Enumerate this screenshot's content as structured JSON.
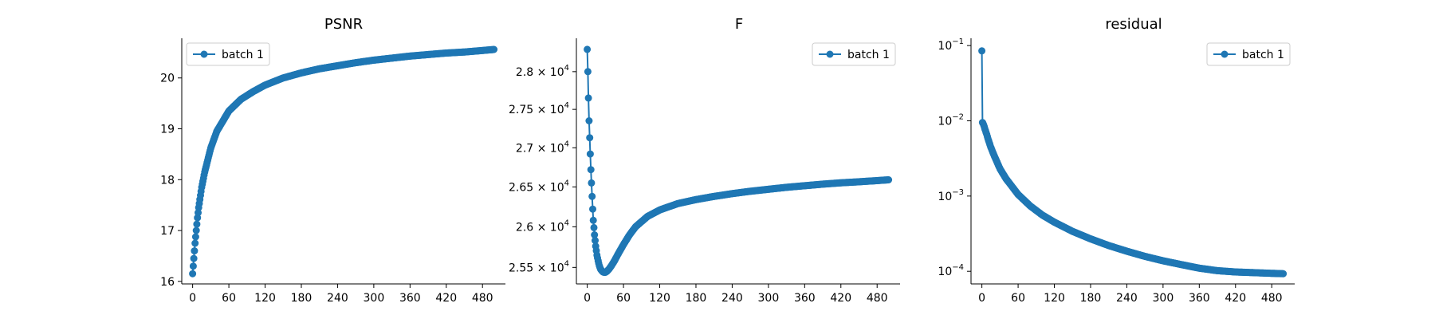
{
  "chart_data": [
    {
      "type": "line",
      "title": "PSNR",
      "xlabel": "",
      "ylabel": "",
      "yscale": "linear",
      "xlim": [
        -18,
        518
      ],
      "ylim": [
        15.95,
        20.78
      ],
      "xticks": [
        0,
        60,
        120,
        180,
        240,
        300,
        360,
        420,
        480
      ],
      "yticks": [
        16,
        17,
        18,
        19,
        20
      ],
      "ytick_labels": [
        "16",
        "17",
        "18",
        "19",
        "20"
      ],
      "legend": {
        "position": "top-left",
        "entries": [
          "batch 1"
        ]
      },
      "marker": "circle",
      "color": "#1f77b4",
      "grid": false,
      "series": [
        {
          "name": "batch 1",
          "x": [
            0,
            1,
            2,
            3,
            4,
            6,
            8,
            10,
            15,
            20,
            30,
            40,
            60,
            80,
            100,
            120,
            150,
            180,
            210,
            240,
            270,
            300,
            330,
            360,
            390,
            420,
            450,
            480,
            499
          ],
          "y": [
            16.15,
            16.3,
            16.45,
            16.6,
            16.75,
            17.0,
            17.25,
            17.45,
            17.85,
            18.15,
            18.62,
            18.95,
            19.35,
            19.58,
            19.73,
            19.86,
            20.0,
            20.1,
            20.18,
            20.24,
            20.3,
            20.35,
            20.39,
            20.43,
            20.46,
            20.49,
            20.51,
            20.54,
            20.56
          ]
        }
      ]
    },
    {
      "type": "line",
      "title": "F",
      "xlabel": "",
      "ylabel": "",
      "yscale": "log",
      "xlim": [
        -18,
        518
      ],
      "ylim": [
        25300,
        28450
      ],
      "xticks": [
        0,
        60,
        120,
        180,
        240,
        300,
        360,
        420,
        480
      ],
      "yticks": [
        25500,
        26000,
        26500,
        27000,
        27500,
        28000
      ],
      "ytick_labels": [
        "2.55",
        "2.6",
        "2.65",
        "2.7",
        "2.75",
        "2.8"
      ],
      "ytick_multiplier": "× 10",
      "ytick_exponent": "4",
      "legend": {
        "position": "top-right",
        "entries": [
          "batch 1"
        ]
      },
      "marker": "circle",
      "color": "#1f77b4",
      "grid": false,
      "series": [
        {
          "name": "batch 1",
          "x": [
            0,
            1,
            2,
            3,
            4,
            5,
            6,
            7,
            8,
            9,
            10,
            12,
            14,
            16,
            18,
            20,
            22,
            24,
            26,
            28,
            30,
            33,
            36,
            40,
            45,
            50,
            60,
            70,
            80,
            100,
            120,
            150,
            180,
            210,
            240,
            270,
            300,
            330,
            360,
            390,
            420,
            450,
            480,
            499
          ],
          "y": [
            28300,
            28000,
            27650,
            27350,
            27130,
            26920,
            26720,
            26550,
            26380,
            26220,
            26080,
            25900,
            25760,
            25650,
            25580,
            25520,
            25480,
            25460,
            25445,
            25440,
            25440,
            25455,
            25480,
            25520,
            25580,
            25650,
            25780,
            25900,
            26000,
            26130,
            26210,
            26290,
            26340,
            26380,
            26415,
            26445,
            26470,
            26495,
            26515,
            26535,
            26552,
            26565,
            26580,
            26590
          ]
        }
      ]
    },
    {
      "type": "line",
      "title": "residual",
      "xlabel": "",
      "ylabel": "",
      "yscale": "log",
      "xlim": [
        -18,
        518
      ],
      "ylim": [
        6.8e-05,
        0.125
      ],
      "xticks": [
        0,
        60,
        120,
        180,
        240,
        300,
        360,
        420,
        480
      ],
      "yticks": [
        0.0001,
        0.001,
        0.01,
        0.1
      ],
      "ytick_bases": [
        "10",
        "10",
        "10",
        "10"
      ],
      "ytick_exponents": [
        "−4",
        "−3",
        "−2",
        "−1"
      ],
      "legend": {
        "position": "top-right",
        "entries": [
          "batch 1"
        ]
      },
      "marker": "circle",
      "color": "#1f77b4",
      "grid": false,
      "series": [
        {
          "name": "batch 1",
          "x": [
            0,
            1,
            2,
            3,
            5,
            8,
            10,
            15,
            20,
            30,
            40,
            60,
            80,
            100,
            120,
            150,
            180,
            210,
            240,
            270,
            300,
            330,
            360,
            390,
            420,
            450,
            480,
            499
          ],
          "y": [
            0.085,
            0.0095,
            0.0092,
            0.0088,
            0.0078,
            0.0066,
            0.0058,
            0.0044,
            0.0035,
            0.0023,
            0.0017,
            0.00105,
            0.00074,
            0.00056,
            0.00045,
            0.00034,
            0.00027,
            0.00022,
            0.000185,
            0.000158,
            0.000138,
            0.000123,
            0.00011,
            0.000102,
            9.8e-05,
            9.6e-05,
            9.4e-05,
            9.3e-05
          ]
        }
      ]
    }
  ]
}
